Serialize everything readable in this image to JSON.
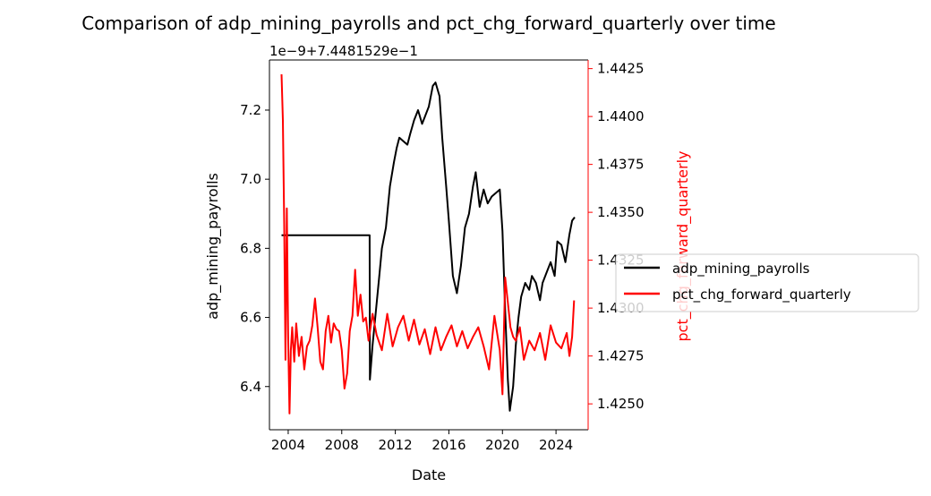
{
  "chart_data": {
    "type": "line",
    "title": "Comparison of adp_mining_payrolls and pct_chg_forward_quarterly over time",
    "xlabel": "Date",
    "ylabel_left": "adp_mining_payrolls",
    "ylabel_right": "pct_chg_forward_quarterly",
    "offset_text": "1e−9+7.4481529e−1",
    "x_range": [
      2002.6,
      2026.4
    ],
    "x_ticks": [
      2004,
      2008,
      2012,
      2016,
      2020,
      2024
    ],
    "x_tick_labels": [
      "2004",
      "2008",
      "2012",
      "2016",
      "2020",
      "2024"
    ],
    "y_left_range": [
      6.275,
      7.345
    ],
    "y_left_ticks": [
      6.4,
      6.6,
      6.8,
      7.0,
      7.2
    ],
    "y_left_tick_labels": [
      "6.4",
      "6.6",
      "6.8",
      "7.0",
      "7.2"
    ],
    "y_right_range": [
      1.42365,
      1.44295
    ],
    "y_right_ticks": [
      1.425,
      1.4275,
      1.43,
      1.4325,
      1.435,
      1.4375,
      1.44,
      1.4425
    ],
    "y_right_tick_labels": [
      "1.4250",
      "1.4275",
      "1.4300",
      "1.4325",
      "1.4350",
      "1.4375",
      "1.4400",
      "1.4425"
    ],
    "legend_placement": "right, outside plot",
    "grid": false,
    "series": [
      {
        "name": "adp_mining_payrolls",
        "axis": "left",
        "color": "#000000",
        "x": [
          2003.5,
          2010.08,
          2010.1,
          2010.3,
          2010.5,
          2010.8,
          2011.0,
          2011.3,
          2011.6,
          2011.9,
          2012.1,
          2012.3,
          2012.6,
          2012.9,
          2013.1,
          2013.4,
          2013.7,
          2014.0,
          2014.2,
          2014.5,
          2014.8,
          2015.0,
          2015.3,
          2015.5,
          2015.8,
          2016.0,
          2016.3,
          2016.6,
          2016.9,
          2017.2,
          2017.5,
          2017.8,
          2018.0,
          2018.3,
          2018.6,
          2018.9,
          2019.2,
          2019.5,
          2019.8,
          2020.0,
          2020.2,
          2020.4,
          2020.55,
          2020.8,
          2021.0,
          2021.2,
          2021.4,
          2021.7,
          2022.0,
          2022.2,
          2022.5,
          2022.8,
          2023.0,
          2023.3,
          2023.6,
          2023.9,
          2024.1,
          2024.4,
          2024.7,
          2025.0,
          2025.2,
          2025.4
        ],
        "y": [
          6.838,
          6.838,
          6.42,
          6.52,
          6.6,
          6.72,
          6.8,
          6.86,
          6.98,
          7.05,
          7.09,
          7.12,
          7.11,
          7.1,
          7.13,
          7.17,
          7.2,
          7.16,
          7.18,
          7.21,
          7.27,
          7.28,
          7.24,
          7.12,
          6.98,
          6.88,
          6.72,
          6.67,
          6.75,
          6.86,
          6.9,
          6.98,
          7.02,
          6.92,
          6.97,
          6.93,
          6.95,
          6.96,
          6.97,
          6.85,
          6.62,
          6.42,
          6.33,
          6.4,
          6.52,
          6.6,
          6.66,
          6.7,
          6.68,
          6.72,
          6.7,
          6.65,
          6.7,
          6.73,
          6.76,
          6.72,
          6.82,
          6.81,
          6.76,
          6.84,
          6.88,
          6.89
        ]
      },
      {
        "name": "pct_chg_forward_quarterly",
        "axis": "right",
        "color": "#ff0000",
        "x": [
          2003.5,
          2003.6,
          2003.7,
          2003.8,
          2003.9,
          2004.0,
          2004.1,
          2004.2,
          2004.3,
          2004.45,
          2004.6,
          2004.8,
          2005.0,
          2005.2,
          2005.4,
          2005.6,
          2005.8,
          2006.0,
          2006.2,
          2006.4,
          2006.6,
          2006.8,
          2007.0,
          2007.2,
          2007.4,
          2007.6,
          2007.8,
          2008.0,
          2008.2,
          2008.4,
          2008.6,
          2008.8,
          2009.0,
          2009.2,
          2009.4,
          2009.6,
          2009.8,
          2010.0,
          2010.3,
          2010.6,
          2011.0,
          2011.4,
          2011.8,
          2012.2,
          2012.6,
          2013.0,
          2013.4,
          2013.8,
          2014.2,
          2014.6,
          2015.0,
          2015.4,
          2015.8,
          2016.2,
          2016.6,
          2017.0,
          2017.4,
          2017.8,
          2018.2,
          2018.6,
          2019.0,
          2019.4,
          2019.8,
          2020.0,
          2020.2,
          2020.4,
          2020.6,
          2020.8,
          2021.0,
          2021.3,
          2021.6,
          2022.0,
          2022.4,
          2022.8,
          2023.2,
          2023.6,
          2024.0,
          2024.4,
          2024.8,
          2025.0,
          2025.2,
          2025.35
        ],
        "y": [
          1.4422,
          1.4398,
          1.4343,
          1.4273,
          1.4352,
          1.4285,
          1.4245,
          1.4278,
          1.429,
          1.4272,
          1.4292,
          1.4275,
          1.4285,
          1.4268,
          1.428,
          1.4283,
          1.4291,
          1.4305,
          1.429,
          1.4272,
          1.4268,
          1.4288,
          1.4296,
          1.4282,
          1.4292,
          1.4289,
          1.4288,
          1.4278,
          1.4258,
          1.4266,
          1.4288,
          1.4296,
          1.432,
          1.4296,
          1.4307,
          1.4293,
          1.4295,
          1.4283,
          1.4297,
          1.4286,
          1.4278,
          1.4297,
          1.428,
          1.429,
          1.4296,
          1.4283,
          1.4294,
          1.4281,
          1.4289,
          1.4276,
          1.429,
          1.4278,
          1.4285,
          1.4291,
          1.428,
          1.4288,
          1.4279,
          1.4285,
          1.429,
          1.428,
          1.4268,
          1.4296,
          1.4278,
          1.4255,
          1.4316,
          1.4303,
          1.429,
          1.4285,
          1.4283,
          1.429,
          1.4273,
          1.4283,
          1.4278,
          1.4287,
          1.4273,
          1.4291,
          1.4282,
          1.4279,
          1.4287,
          1.4275,
          1.4285,
          1.4304
        ]
      }
    ]
  }
}
